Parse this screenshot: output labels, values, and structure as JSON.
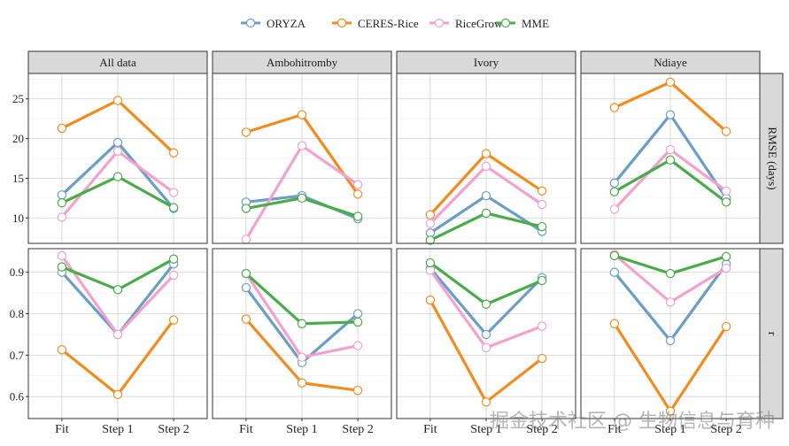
{
  "chart_data": {
    "type": "line",
    "layout": "faceted-grid",
    "legend": {
      "position": "top",
      "entries": [
        {
          "name": "ORYZA",
          "color": "#6a9ec7"
        },
        {
          "name": "CERES-Rice",
          "color": "#f28c1e"
        },
        {
          "name": "RiceGrow",
          "color": "#f2a2cb"
        },
        {
          "name": "MME",
          "color": "#4aab4b"
        }
      ]
    },
    "x_categories": [
      "Fit",
      "Step 1",
      "Step 2"
    ],
    "columns": [
      "All data",
      "Ambohitromby",
      "Ivory",
      "Ndiaye"
    ],
    "rows": [
      {
        "label": "RMSE (days)",
        "ylim": [
          6.8,
          28.2
        ],
        "yticks": [
          10,
          15,
          20,
          25
        ],
        "panels": [
          {
            "ORYZA": [
              12.9,
              19.5,
              11.2
            ],
            "CERES-Rice": [
              21.3,
              24.8,
              18.2
            ],
            "RiceGrow": [
              10.1,
              18.4,
              13.2
            ],
            "MME": [
              11.9,
              15.2,
              11.3
            ]
          },
          {
            "ORYZA": [
              12.0,
              12.8,
              9.9
            ],
            "CERES-Rice": [
              20.8,
              23.0,
              13.0
            ],
            "RiceGrow": [
              7.3,
              19.1,
              14.2
            ],
            "MME": [
              11.2,
              12.5,
              10.2
            ]
          },
          {
            "ORYZA": [
              8.1,
              12.8,
              8.3
            ],
            "CERES-Rice": [
              10.4,
              18.1,
              13.4
            ],
            "RiceGrow": [
              9.3,
              16.5,
              11.7
            ],
            "MME": [
              7.2,
              10.6,
              8.9
            ]
          },
          {
            "ORYZA": [
              14.4,
              23.0,
              12.5
            ],
            "CERES-Rice": [
              23.9,
              27.1,
              20.9
            ],
            "RiceGrow": [
              11.1,
              18.6,
              13.4
            ],
            "MME": [
              13.3,
              17.3,
              12.0
            ]
          }
        ]
      },
      {
        "label": "r",
        "ylim": [
          0.547,
          0.957
        ],
        "yticks": [
          0.6,
          0.7,
          0.8,
          0.9
        ],
        "panels": [
          {
            "ORYZA": [
              0.9,
              0.75,
              0.92
            ],
            "CERES-Rice": [
              0.713,
              0.605,
              0.785
            ],
            "RiceGrow": [
              0.94,
              0.75,
              0.893
            ],
            "MME": [
              0.913,
              0.858,
              0.932
            ]
          },
          {
            "ORYZA": [
              0.863,
              0.682,
              0.8
            ],
            "CERES-Rice": [
              0.787,
              0.633,
              0.615
            ],
            "RiceGrow": [
              0.897,
              0.695,
              0.723
            ],
            "MME": [
              0.897,
              0.776,
              0.78
            ]
          },
          {
            "ORYZA": [
              0.91,
              0.75,
              0.887
            ],
            "CERES-Rice": [
              0.833,
              0.587,
              0.692
            ],
            "RiceGrow": [
              0.905,
              0.718,
              0.77
            ],
            "MME": [
              0.923,
              0.823,
              0.88
            ]
          },
          {
            "ORYZA": [
              0.9,
              0.735,
              0.92
            ],
            "CERES-Rice": [
              0.776,
              0.565,
              0.769
            ],
            "RiceGrow": [
              0.943,
              0.828,
              0.91
            ],
            "MME": [
              0.94,
              0.897,
              0.938
            ]
          }
        ]
      }
    ]
  },
  "watermark": "掘金技术社区 @ 生物信息与育种"
}
